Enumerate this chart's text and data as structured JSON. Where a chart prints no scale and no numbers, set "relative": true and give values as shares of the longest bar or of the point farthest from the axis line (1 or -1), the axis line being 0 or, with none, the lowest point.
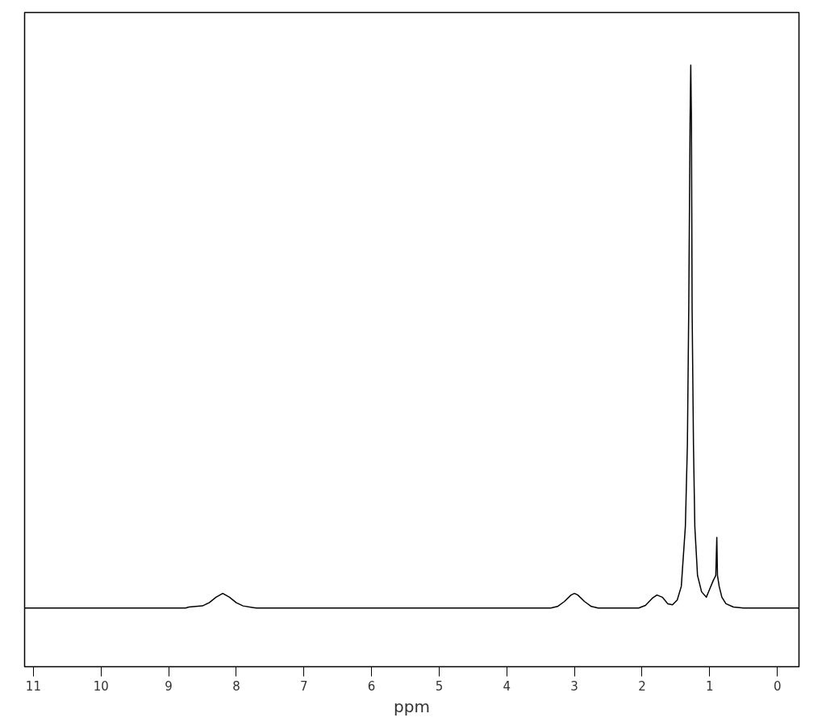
{
  "chart_data": {
    "type": "line",
    "xlabel": "ppm",
    "relative": true,
    "grid": false,
    "marker": "none",
    "line_style": "solid",
    "xlim": [
      11.13,
      -0.32
    ],
    "xticks": [
      11,
      10,
      9,
      8,
      7,
      6,
      5,
      4,
      3,
      2,
      1,
      0
    ],
    "tick_labels": "x",
    "series": [
      {
        "color": "#000000",
        "x": [
          11.13,
          8.75,
          8.7,
          8.5,
          8.4,
          8.3,
          8.2,
          8.1,
          8.0,
          7.9,
          7.75,
          7.7,
          3.35,
          3.25,
          3.15,
          3.05,
          3.0,
          2.95,
          2.85,
          2.75,
          2.65,
          2.05,
          1.95,
          1.85,
          1.78,
          1.7,
          1.62,
          1.55,
          1.48,
          1.42,
          1.36,
          1.33,
          1.31,
          1.29,
          1.28,
          1.27,
          1.26,
          1.24,
          1.22,
          1.18,
          1.12,
          1.05,
          1.0,
          0.95,
          0.91,
          0.895,
          0.885,
          0.86,
          0.82,
          0.76,
          0.65,
          0.5,
          -0.32
        ],
        "values": [
          0,
          0,
          0.002,
          0.004,
          0.01,
          0.02,
          0.027,
          0.02,
          0.01,
          0.004,
          0.001,
          0,
          0,
          0.003,
          0.012,
          0.024,
          0.027,
          0.024,
          0.012,
          0.003,
          0,
          0,
          0.005,
          0.018,
          0.024,
          0.02,
          0.008,
          0.006,
          0.015,
          0.04,
          0.15,
          0.3,
          0.55,
          0.9,
          1.0,
          0.9,
          0.55,
          0.3,
          0.15,
          0.06,
          0.03,
          0.02,
          0.035,
          0.05,
          0.06,
          0.13,
          0.06,
          0.04,
          0.02,
          0.008,
          0.002,
          0,
          0
        ]
      }
    ]
  }
}
